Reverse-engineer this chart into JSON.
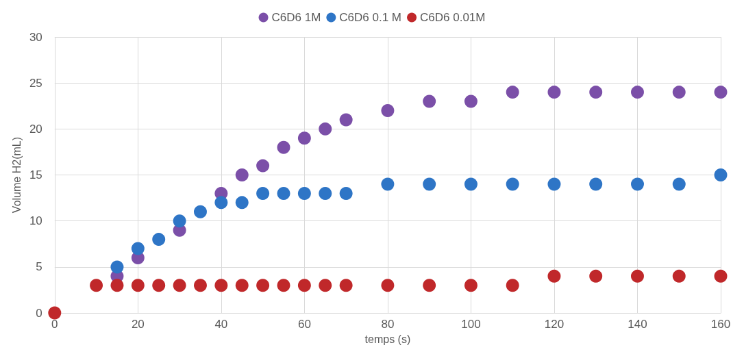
{
  "chart_data": {
    "type": "scatter",
    "xlabel": "temps (s)",
    "ylabel": "Volume H2(mL)",
    "x": [
      0,
      10,
      15,
      20,
      25,
      30,
      35,
      40,
      45,
      50,
      55,
      60,
      65,
      70,
      80,
      90,
      100,
      110,
      120,
      130,
      140,
      150,
      160
    ],
    "series": [
      {
        "name": "C6D6 1M",
        "color": "#7b4fa8",
        "values": [
          null,
          null,
          4,
          6,
          null,
          9,
          null,
          13,
          15,
          16,
          18,
          19,
          20,
          21,
          22,
          23,
          23,
          24,
          24,
          24,
          24,
          24,
          24
        ]
      },
      {
        "name": "C6D6 0.1 M",
        "color": "#2e75c6",
        "values": [
          null,
          null,
          5,
          7,
          8,
          10,
          11,
          12,
          12,
          13,
          13,
          13,
          13,
          13,
          14,
          14,
          14,
          14,
          14,
          14,
          14,
          14,
          15
        ]
      },
      {
        "name": "C6D6 0.01M",
        "color": "#c0282a",
        "values": [
          0,
          3,
          3,
          3,
          3,
          3,
          3,
          3,
          3,
          3,
          3,
          3,
          3,
          3,
          3,
          3,
          3,
          3,
          4,
          4,
          4,
          4,
          4
        ]
      }
    ],
    "xlim": [
      0,
      160
    ],
    "xticks": [
      0,
      20,
      40,
      60,
      80,
      100,
      120,
      140,
      160
    ],
    "ylim": [
      0,
      30
    ],
    "yticks": [
      0,
      5,
      10,
      15,
      20,
      25,
      30
    ],
    "grid": true,
    "legend": "top",
    "marker": "circle"
  }
}
